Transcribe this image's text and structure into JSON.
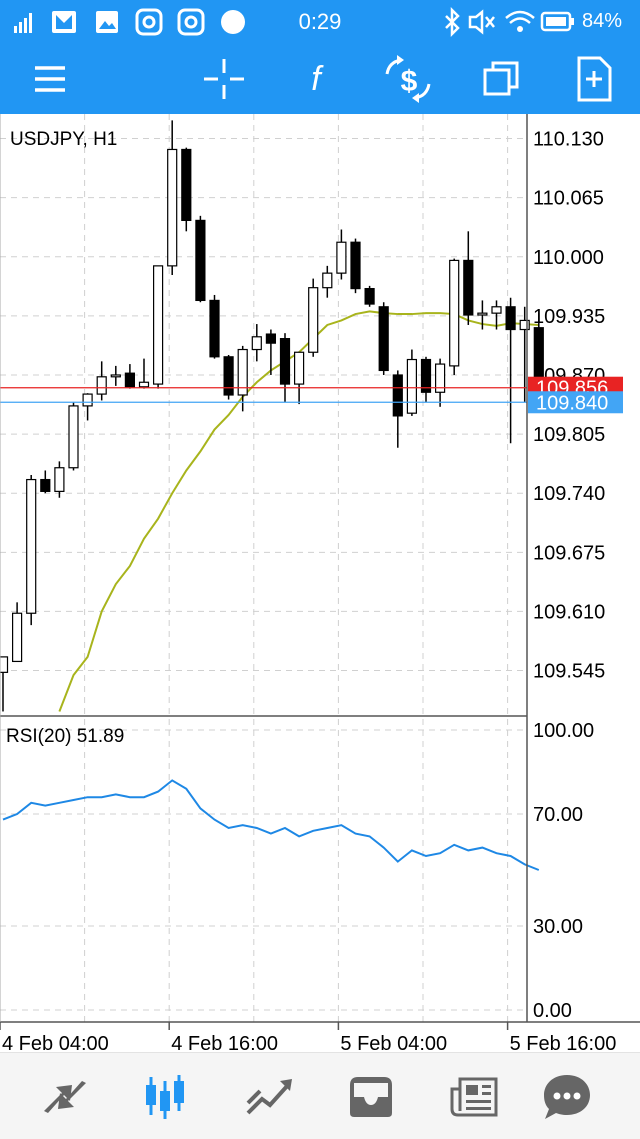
{
  "status_bar": {
    "time": "0:29",
    "battery": "84%"
  },
  "toolbar": {
    "buttons": [
      {
        "name": "menu",
        "icon": "hamburger-icon"
      },
      {
        "name": "crosshair",
        "icon": "crosshair-icon"
      },
      {
        "name": "indicators",
        "icon": "function-icon"
      },
      {
        "name": "trade",
        "icon": "dollar-exchange-icon"
      },
      {
        "name": "windows",
        "icon": "stacked-windows-icon"
      },
      {
        "name": "new-order",
        "icon": "add-document-icon"
      }
    ]
  },
  "bottom_nav": {
    "items": [
      {
        "name": "quotes",
        "icon": "quotes-arrows-icon",
        "active": false
      },
      {
        "name": "chart",
        "icon": "candlestick-icon",
        "active": true
      },
      {
        "name": "trade",
        "icon": "trend-icon",
        "active": false
      },
      {
        "name": "history",
        "icon": "inbox-icon",
        "active": false
      },
      {
        "name": "news",
        "icon": "news-icon",
        "active": false
      },
      {
        "name": "messages",
        "icon": "chat-bubble-icon",
        "active": false
      }
    ],
    "active_color": "#2196f3",
    "inactive_color": "#666666"
  },
  "chart_data": [
    {
      "type": "candlestick",
      "title": "USDJPY, H1",
      "ylim": [
        109.495,
        110.157
      ],
      "yticks": [
        "110.130",
        "110.065",
        "110.000",
        "109.935",
        "109.870",
        "109.805",
        "109.740",
        "109.675",
        "109.610",
        "109.545"
      ],
      "ytick_values": [
        110.13,
        110.065,
        110.0,
        109.935,
        109.87,
        109.805,
        109.74,
        109.675,
        109.61,
        109.545
      ],
      "xticks": [
        "4 Feb 04:00",
        "4 Feb 16:00",
        "5 Feb 04:00",
        "5 Feb 16:00"
      ],
      "xtick_index": [
        0,
        12,
        24,
        36
      ],
      "grid": true,
      "up_color": "#ffffff",
      "down_color": "#000000",
      "candles": [
        {
          "o": 109.543,
          "h": 109.56,
          "l": 109.5,
          "c": 109.56
        },
        {
          "o": 109.555,
          "h": 109.62,
          "l": 109.555,
          "c": 109.608
        },
        {
          "o": 109.608,
          "h": 109.76,
          "l": 109.595,
          "c": 109.755
        },
        {
          "o": 109.755,
          "h": 109.765,
          "l": 109.74,
          "c": 109.742
        },
        {
          "o": 109.742,
          "h": 109.775,
          "l": 109.735,
          "c": 109.768
        },
        {
          "o": 109.768,
          "h": 109.84,
          "l": 109.765,
          "c": 109.836
        },
        {
          "o": 109.836,
          "h": 109.85,
          "l": 109.82,
          "c": 109.849
        },
        {
          "o": 109.849,
          "h": 109.885,
          "l": 109.842,
          "c": 109.868
        },
        {
          "o": 109.868,
          "h": 109.88,
          "l": 109.858,
          "c": 109.87
        },
        {
          "o": 109.872,
          "h": 109.882,
          "l": 109.855,
          "c": 109.857
        },
        {
          "o": 109.857,
          "h": 109.888,
          "l": 109.855,
          "c": 109.862
        },
        {
          "o": 109.86,
          "h": 109.99,
          "l": 109.855,
          "c": 109.99
        },
        {
          "o": 109.99,
          "h": 110.15,
          "l": 109.98,
          "c": 110.118
        },
        {
          "o": 110.118,
          "h": 110.12,
          "l": 110.028,
          "c": 110.04
        },
        {
          "o": 110.04,
          "h": 110.045,
          "l": 109.95,
          "c": 109.952
        },
        {
          "o": 109.952,
          "h": 109.958,
          "l": 109.888,
          "c": 109.89
        },
        {
          "o": 109.89,
          "h": 109.892,
          "l": 109.843,
          "c": 109.848
        },
        {
          "o": 109.848,
          "h": 109.902,
          "l": 109.83,
          "c": 109.898
        },
        {
          "o": 109.898,
          "h": 109.926,
          "l": 109.885,
          "c": 109.912
        },
        {
          "o": 109.915,
          "h": 109.92,
          "l": 109.87,
          "c": 109.905
        },
        {
          "o": 109.91,
          "h": 109.916,
          "l": 109.84,
          "c": 109.86
        },
        {
          "o": 109.86,
          "h": 109.895,
          "l": 109.838,
          "c": 109.895
        },
        {
          "o": 109.895,
          "h": 109.976,
          "l": 109.89,
          "c": 109.966
        },
        {
          "o": 109.966,
          "h": 109.99,
          "l": 109.955,
          "c": 109.982
        },
        {
          "o": 109.982,
          "h": 110.03,
          "l": 109.975,
          "c": 110.016
        },
        {
          "o": 110.016,
          "h": 110.02,
          "l": 109.96,
          "c": 109.965
        },
        {
          "o": 109.965,
          "h": 109.968,
          "l": 109.945,
          "c": 109.948
        },
        {
          "o": 109.945,
          "h": 109.95,
          "l": 109.87,
          "c": 109.875
        },
        {
          "o": 109.87,
          "h": 109.875,
          "l": 109.79,
          "c": 109.825
        },
        {
          "o": 109.828,
          "h": 109.898,
          "l": 109.825,
          "c": 109.887
        },
        {
          "o": 109.887,
          "h": 109.89,
          "l": 109.84,
          "c": 109.851
        },
        {
          "o": 109.851,
          "h": 109.888,
          "l": 109.835,
          "c": 109.882
        },
        {
          "o": 109.88,
          "h": 109.998,
          "l": 109.87,
          "c": 109.996
        },
        {
          "o": 109.996,
          "h": 110.028,
          "l": 109.925,
          "c": 109.936
        },
        {
          "o": 109.936,
          "h": 109.952,
          "l": 109.92,
          "c": 109.938
        },
        {
          "o": 109.938,
          "h": 109.952,
          "l": 109.92,
          "c": 109.945
        },
        {
          "o": 109.945,
          "h": 109.955,
          "l": 109.795,
          "c": 109.92
        },
        {
          "o": 109.92,
          "h": 109.945,
          "l": 109.84,
          "c": 109.93
        },
        {
          "o": 109.922,
          "h": 109.938,
          "l": 109.83,
          "c": 109.85
        }
      ],
      "moving_average": {
        "color": "#a8b41c",
        "values": [
          null,
          null,
          null,
          null,
          109.5,
          109.54,
          109.56,
          109.61,
          109.64,
          109.66,
          109.69,
          109.712,
          109.74,
          109.765,
          109.786,
          109.81,
          109.826,
          109.846,
          109.862,
          109.875,
          109.885,
          109.895,
          109.91,
          109.925,
          109.93,
          109.937,
          109.94,
          109.938,
          109.937,
          109.937,
          109.938,
          109.938,
          109.937,
          109.93,
          109.926,
          109.924,
          109.927,
          109.926,
          109.925
        ]
      },
      "price_lines": [
        {
          "value": 109.856,
          "label": "109.856",
          "color": "#e82323"
        },
        {
          "value": 109.84,
          "label": "109.840",
          "color": "#42a5f5"
        }
      ]
    },
    {
      "type": "line",
      "title": "RSI(20) 51.89",
      "ylim": [
        0,
        100
      ],
      "yticks": [
        "100.00",
        "70.00",
        "30.00",
        "0.00"
      ],
      "ytick_values": [
        100,
        70,
        30,
        0
      ],
      "grid": true,
      "series": [
        {
          "color": "#1e88e5",
          "values": [
            68,
            70,
            74,
            73,
            74,
            75,
            76,
            76,
            77,
            76,
            76,
            78,
            82,
            79,
            72,
            68,
            65,
            66,
            65,
            63,
            65,
            62,
            64,
            65,
            66,
            63,
            62,
            58,
            53,
            57,
            55,
            56,
            59,
            57,
            58,
            56,
            55,
            52,
            50
          ]
        }
      ]
    }
  ]
}
